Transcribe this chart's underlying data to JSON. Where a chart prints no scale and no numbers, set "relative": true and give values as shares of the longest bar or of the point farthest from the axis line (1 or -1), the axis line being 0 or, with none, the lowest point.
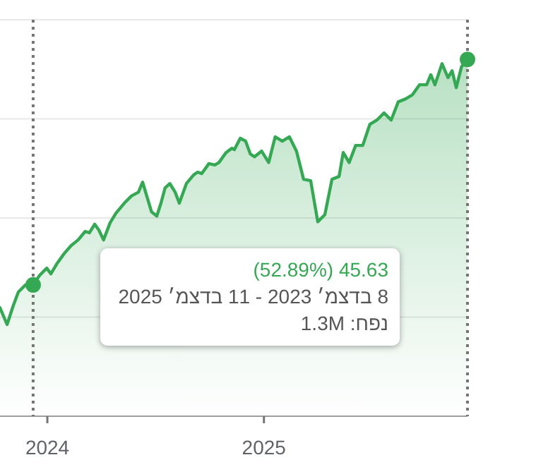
{
  "chart_data": {
    "type": "area",
    "relative": true,
    "grid": "y",
    "xlim": [
      "2023-10-13",
      "2025-12-11"
    ],
    "xticks": [
      "2024",
      "2025"
    ],
    "series": [
      {
        "type": "area",
        "color": "#34a853",
        "marker": "none",
        "line_style": "solid",
        "x": [
          "2023-10-13",
          "2023-10-25",
          "2023-11-04",
          "2023-11-13",
          "2023-11-25",
          "2023-12-08",
          "2023-12-19",
          "2023-12-31",
          "2024-01-07",
          "2024-01-17",
          "2024-01-29",
          "2024-02-10",
          "2024-02-22",
          "2024-03-05",
          "2024-03-12",
          "2024-03-21",
          "2024-03-28",
          "2024-04-05",
          "2024-04-16",
          "2024-04-26",
          "2024-05-10",
          "2024-05-22",
          "2024-06-03",
          "2024-06-10",
          "2024-06-17",
          "2024-06-25",
          "2024-07-04",
          "2024-07-11",
          "2024-07-18",
          "2024-07-26",
          "2024-08-04",
          "2024-08-11",
          "2024-08-23",
          "2024-09-04",
          "2024-09-11",
          "2024-09-18",
          "2024-09-30",
          "2024-10-10",
          "2024-10-17",
          "2024-10-29",
          "2024-11-08",
          "2024-11-12",
          "2024-11-22",
          "2024-12-01",
          "2024-12-09",
          "2024-12-16",
          "2024-12-28",
          "2025-01-09",
          "2025-01-20",
          "2025-02-01",
          "2025-02-13",
          "2025-02-25",
          "2025-03-09",
          "2025-03-21",
          "2025-04-02",
          "2025-04-14",
          "2025-04-26",
          "2025-05-08",
          "2025-05-15",
          "2025-05-25",
          "2025-06-05",
          "2025-06-17",
          "2025-06-29",
          "2025-07-11",
          "2025-07-23",
          "2025-08-04",
          "2025-08-16",
          "2025-08-28",
          "2025-09-09",
          "2025-09-21",
          "2025-10-03",
          "2025-10-10",
          "2025-10-17",
          "2025-10-29",
          "2025-11-08",
          "2025-11-15",
          "2025-11-22",
          "2025-12-01",
          "2025-12-11"
        ],
        "values": [
          0.304,
          0.257,
          0.308,
          0.348,
          0.368,
          0.368,
          0.395,
          0.415,
          0.399,
          0.427,
          0.455,
          0.478,
          0.494,
          0.518,
          0.514,
          0.538,
          0.522,
          0.494,
          0.542,
          0.569,
          0.597,
          0.617,
          0.628,
          0.656,
          0.617,
          0.573,
          0.561,
          0.597,
          0.64,
          0.652,
          0.628,
          0.597,
          0.652,
          0.676,
          0.684,
          0.68,
          0.708,
          0.704,
          0.711,
          0.739,
          0.751,
          0.747,
          0.779,
          0.771,
          0.735,
          0.727,
          0.743,
          0.711,
          0.783,
          0.771,
          0.783,
          0.743,
          0.664,
          0.66,
          0.545,
          0.565,
          0.664,
          0.672,
          0.739,
          0.711,
          0.759,
          0.759,
          0.818,
          0.83,
          0.85,
          0.83,
          0.881,
          0.889,
          0.901,
          0.929,
          0.929,
          0.957,
          0.929,
          0.988,
          0.949,
          0.968,
          0.921,
          0.98,
          1.0
        ]
      },
      {
        "type": "scatter",
        "color": "#34a853",
        "marker": "circle",
        "x": [
          "2023-12-08",
          "2025-12-11"
        ],
        "values": [
          0.368,
          1.0
        ]
      }
    ],
    "ref_lines": [
      {
        "axis": "x",
        "value": "2023-12-08",
        "color": "#757575",
        "line_style": "dotted"
      },
      {
        "axis": "x",
        "value": "2025-12-11",
        "color": "#757575",
        "line_style": "dotted"
      }
    ],
    "annotations": [
      "45.63 (52.89%)",
      "8 בדצמ׳ 2023 - 11 בדצמ׳ 2025",
      "נפח: 1.3M"
    ]
  }
}
